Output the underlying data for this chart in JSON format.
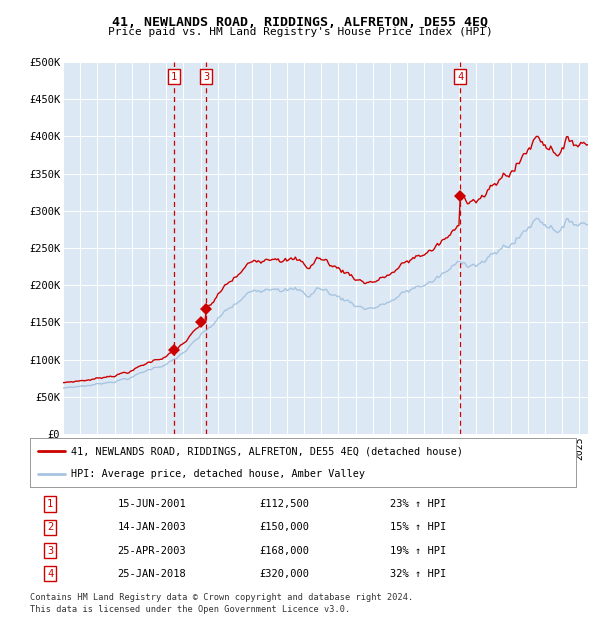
{
  "title": "41, NEWLANDS ROAD, RIDDINGS, ALFRETON, DE55 4EQ",
  "subtitle": "Price paid vs. HM Land Registry's House Price Index (HPI)",
  "background_color": "#dce9f5",
  "fig_bg_color": "#ffffff",
  "hpi_color": "#a8c4e0",
  "price_color": "#cc0000",
  "vline_color": "#cc0000",
  "marker_color": "#cc0000",
  "ylim": [
    0,
    500000
  ],
  "yticks": [
    0,
    50000,
    100000,
    150000,
    200000,
    250000,
    300000,
    350000,
    400000,
    450000,
    500000
  ],
  "ytick_labels": [
    "£0",
    "£50K",
    "£100K",
    "£150K",
    "£200K",
    "£250K",
    "£300K",
    "£350K",
    "£400K",
    "£450K",
    "£500K"
  ],
  "xlim_start": 1995.0,
  "xlim_end": 2025.5,
  "sale_dates": [
    2001.46,
    2003.04,
    2003.32,
    2018.07
  ],
  "sale_prices": [
    112500,
    150000,
    168000,
    320000
  ],
  "sale_labels": [
    "1",
    "2",
    "3",
    "4"
  ],
  "vline_dates": [
    2001.46,
    2003.32,
    2018.07
  ],
  "vline_labels": [
    "1",
    "3",
    "4"
  ],
  "legend_line1": "41, NEWLANDS ROAD, RIDDINGS, ALFRETON, DE55 4EQ (detached house)",
  "legend_line2": "HPI: Average price, detached house, Amber Valley",
  "table_data": [
    [
      "1",
      "15-JUN-2001",
      "£112,500",
      "23% ↑ HPI"
    ],
    [
      "2",
      "14-JAN-2003",
      "£150,000",
      "15% ↑ HPI"
    ],
    [
      "3",
      "25-APR-2003",
      "£168,000",
      "19% ↑ HPI"
    ],
    [
      "4",
      "25-JAN-2018",
      "£320,000",
      "32% ↑ HPI"
    ]
  ],
  "footnote1": "Contains HM Land Registry data © Crown copyright and database right 2024.",
  "footnote2": "This data is licensed under the Open Government Licence v3.0."
}
